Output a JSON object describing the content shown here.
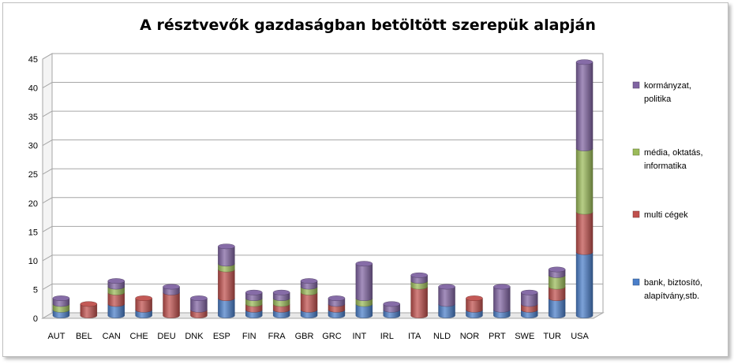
{
  "chart_data": {
    "type": "bar",
    "stacked": true,
    "style": "3d-cylinder",
    "title": "A résztvevők gazdaságban betöltött szerepük alapján",
    "xlabel": "",
    "ylabel": "",
    "ylim": [
      0,
      45
    ],
    "yticks": [
      0,
      5,
      10,
      15,
      20,
      25,
      30,
      35,
      40,
      45
    ],
    "grid": true,
    "legend_position": "right",
    "categories": [
      "AUT",
      "BEL",
      "CAN",
      "CHE",
      "DEU",
      "DNK",
      "ESP",
      "FIN",
      "FRA",
      "GBR",
      "GRC",
      "INT",
      "IRL",
      "ITA",
      "NLD",
      "NOR",
      "PRT",
      "SWE",
      "TUR",
      "USA"
    ],
    "series": [
      {
        "name": "bank, biztosító, alapítvány,stb.",
        "legend_lines": [
          "bank, biztosító,",
          "alapítvány,stb."
        ],
        "color": "#4a7ec9",
        "values": [
          1,
          0,
          2,
          1,
          0,
          0,
          3,
          1,
          1,
          1,
          1,
          2,
          1,
          0,
          2,
          1,
          1,
          1,
          3,
          11
        ]
      },
      {
        "name": "multi cégek",
        "legend_lines": [
          "multi cégek"
        ],
        "color": "#c0504d",
        "values": [
          0,
          2,
          2,
          2,
          4,
          1,
          5,
          1,
          1,
          3,
          1,
          0,
          0,
          5,
          0,
          2,
          0,
          1,
          2,
          7
        ]
      },
      {
        "name": "média, oktatás, informatika",
        "legend_lines": [
          "média, oktatás,",
          "informatika"
        ],
        "color": "#9bbb59",
        "values": [
          1,
          0,
          1,
          0,
          0,
          0,
          1,
          1,
          1,
          1,
          0,
          1,
          0,
          1,
          0,
          0,
          0,
          0,
          2,
          11
        ]
      },
      {
        "name": "kormányzat, politika",
        "legend_lines": [
          "kormányzat,",
          "politika"
        ],
        "color": "#8064a2",
        "values": [
          1,
          0,
          1,
          0,
          1,
          2,
          3,
          1,
          1,
          1,
          1,
          6,
          1,
          1,
          3,
          0,
          4,
          2,
          1,
          15
        ]
      }
    ]
  }
}
